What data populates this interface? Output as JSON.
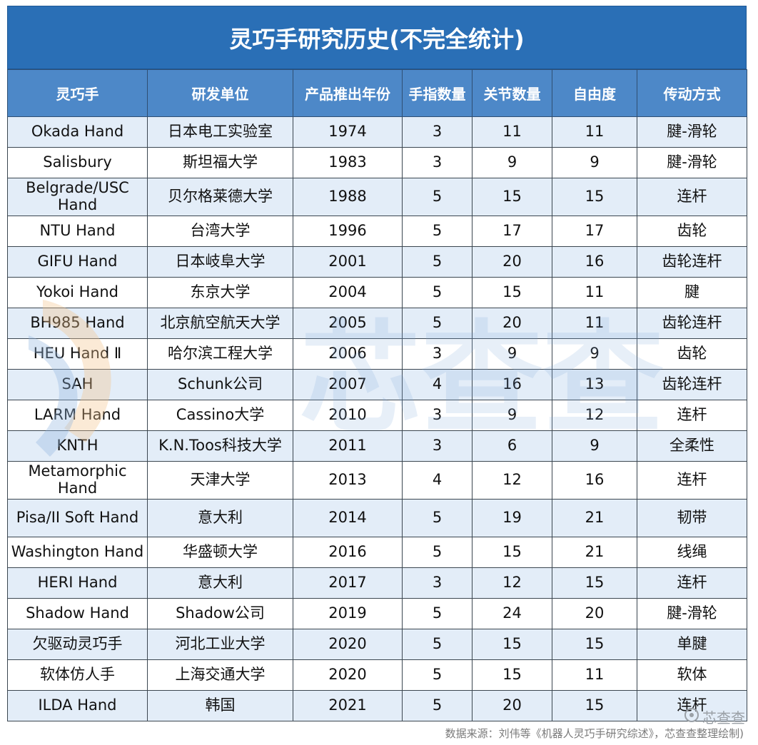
{
  "title": "灵巧手研究历史(不完全统计)",
  "headers": [
    "灵巧手",
    "研发单位",
    "产品推出年份",
    "手指数量",
    "关节数量",
    "自由度",
    "传动方式"
  ],
  "rows": [
    [
      "Okada Hand",
      "日本电工实验室",
      "1974",
      "3",
      "11",
      "11",
      "腱-滑轮"
    ],
    [
      "Salisbury",
      "斯坦福大学",
      "1983",
      "3",
      "9",
      "9",
      "腱-滑轮"
    ],
    [
      "Belgrade/USC Hand",
      "贝尔格莱德大学",
      "1988",
      "5",
      "15",
      "15",
      "连杆"
    ],
    [
      "NTU Hand",
      "台湾大学",
      "1996",
      "5",
      "17",
      "17",
      "齿轮"
    ],
    [
      "GIFU Hand",
      "日本岐阜大学",
      "2001",
      "5",
      "20",
      "16",
      "齿轮连杆"
    ],
    [
      "Yokoi Hand",
      "东京大学",
      "2004",
      "5",
      "15",
      "11",
      "腱"
    ],
    [
      "BH985 Hand",
      "北京航空航天大学",
      "2005",
      "5",
      "20",
      "11",
      "齿轮连杆"
    ],
    [
      "HEU Hand Ⅱ",
      "哈尔滨工程大学",
      "2006",
      "3",
      "9",
      "9",
      "齿轮"
    ],
    [
      "SAH",
      "Schunk公司",
      "2007",
      "4",
      "16",
      "13",
      "齿轮连杆"
    ],
    [
      "LARM Hand",
      "Cassino大学",
      "2010",
      "3",
      "9",
      "12",
      "连杆"
    ],
    [
      "KNTH",
      "K.N.Toos科技大学",
      "2011",
      "3",
      "6",
      "9",
      "全柔性"
    ],
    [
      "Metamorphic Hand",
      "天津大学",
      "2013",
      "4",
      "12",
      "16",
      "连杆"
    ],
    [
      "Pisa/II Soft Hand",
      "意大利",
      "2014",
      "5",
      "19",
      "21",
      "韧带"
    ],
    [
      "Washington Hand",
      "华盛顿大学",
      "2016",
      "5",
      "15",
      "21",
      "线绳"
    ],
    [
      "HERI Hand",
      "意大利",
      "2017",
      "3",
      "12",
      "15",
      "连杆"
    ],
    [
      "Shadow Hand",
      "Shadow公司",
      "2019",
      "5",
      "24",
      "20",
      "腱-滑轮"
    ],
    [
      "欠驱动灵巧手",
      "河北工业大学",
      "2020",
      "5",
      "15",
      "15",
      "单腱"
    ],
    [
      "软体仿人手",
      "上海交通大学",
      "2020",
      "5",
      "15",
      "11",
      "软体"
    ],
    [
      "ILDA Hand",
      "韩国",
      "2021",
      "5",
      "20",
      "15",
      "连杆"
    ]
  ],
  "source": "数据来源：刘伟等《机器人灵巧手研究综述》，芯查查整理绘制)",
  "brand": "芯查查",
  "watermark_text": "芯查查",
  "colors": {
    "title_bg": "#2a6fb6",
    "header_bg": "#4d88c8",
    "stripe": "#e3edf8"
  }
}
